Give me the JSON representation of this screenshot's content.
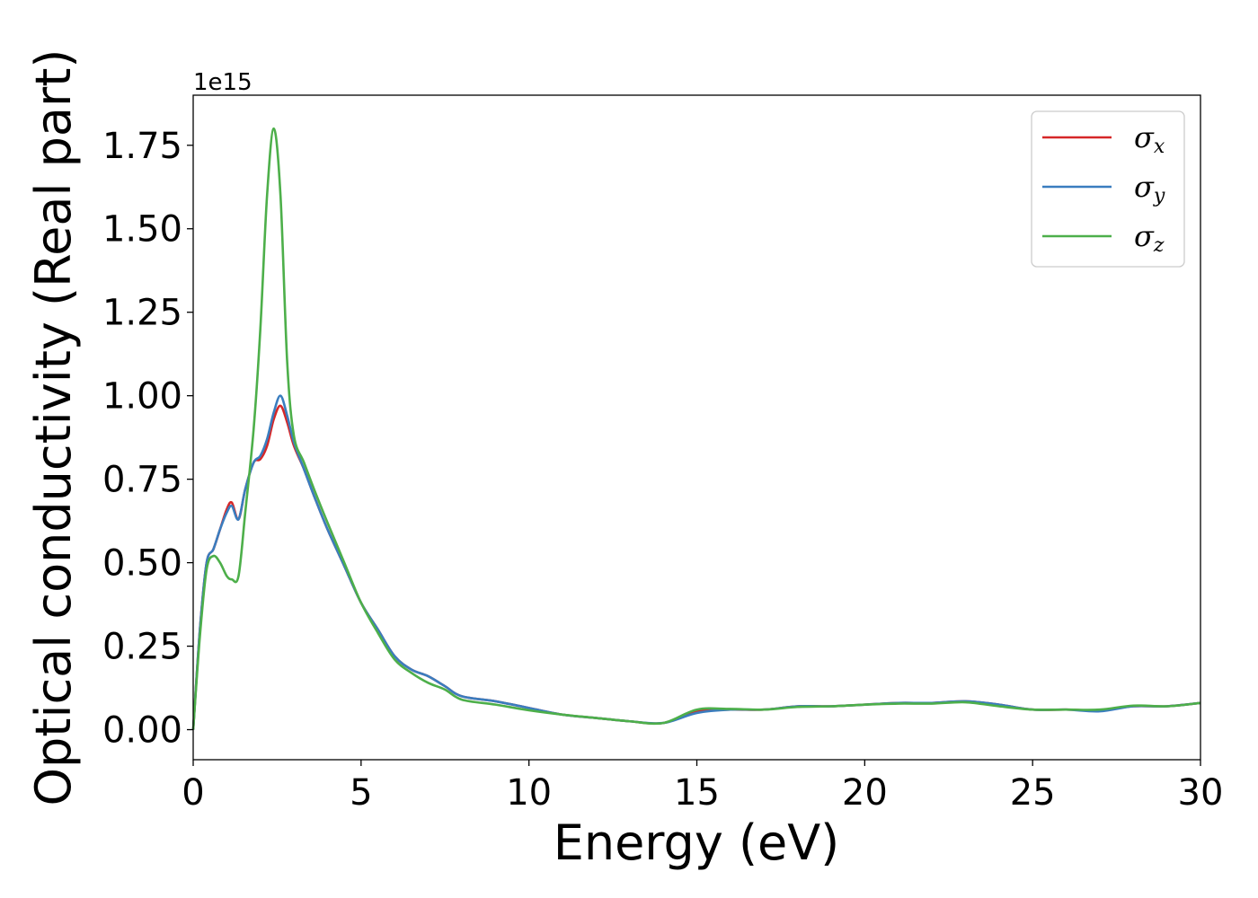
{
  "chart_data": {
    "type": "line",
    "xlabel": "Energy (eV)",
    "ylabel": "Optical conductivity (Real part)",
    "y_offset_text": "1e15",
    "xlim": [
      0,
      30
    ],
    "ylim": [
      -0.09,
      1.9
    ],
    "y_multiplier": 1000000000000000.0,
    "x_ticks": [
      0,
      5,
      10,
      15,
      20,
      25,
      30
    ],
    "y_ticks": [
      0.0,
      0.25,
      0.5,
      0.75,
      1.0,
      1.25,
      1.5,
      1.75
    ],
    "x_tick_labels": [
      "0",
      "5",
      "10",
      "15",
      "20",
      "25",
      "30"
    ],
    "y_tick_labels": [
      "0.00",
      "0.25",
      "0.50",
      "0.75",
      "1.00",
      "1.25",
      "1.50",
      "1.75"
    ],
    "grid": false,
    "legend_position": "top-right",
    "x": [
      0,
      0.2,
      0.4,
      0.6,
      0.8,
      1.0,
      1.15,
      1.35,
      1.55,
      1.8,
      2.0,
      2.2,
      2.4,
      2.6,
      2.8,
      3.0,
      3.3,
      3.6,
      4.0,
      4.5,
      5.0,
      5.5,
      6.0,
      6.5,
      7.0,
      7.5,
      8.0,
      9.0,
      10.0,
      11.0,
      12.0,
      13.0,
      14.0,
      15.0,
      16.0,
      17.0,
      18.0,
      19.0,
      20.0,
      21.0,
      22.0,
      23.0,
      24.0,
      25.0,
      26.0,
      27.0,
      28.0,
      29.0,
      30.0
    ],
    "series": [
      {
        "name": "σ",
        "subscript": "x",
        "color": "#d62728",
        "values": [
          0.0,
          0.3,
          0.5,
          0.54,
          0.6,
          0.66,
          0.68,
          0.63,
          0.72,
          0.8,
          0.81,
          0.85,
          0.93,
          0.97,
          0.92,
          0.85,
          0.78,
          0.7,
          0.6,
          0.49,
          0.38,
          0.3,
          0.22,
          0.18,
          0.16,
          0.13,
          0.1,
          0.085,
          0.065,
          0.045,
          0.035,
          0.025,
          0.02,
          0.055,
          0.06,
          0.06,
          0.07,
          0.07,
          0.075,
          0.08,
          0.08,
          0.085,
          0.075,
          0.06,
          0.06,
          0.058,
          0.07,
          0.07,
          0.08
        ]
      },
      {
        "name": "σ",
        "subscript": "y",
        "color": "#3a7dbf",
        "values": [
          0.0,
          0.3,
          0.5,
          0.54,
          0.6,
          0.65,
          0.67,
          0.63,
          0.72,
          0.8,
          0.82,
          0.87,
          0.95,
          1.0,
          0.94,
          0.86,
          0.78,
          0.7,
          0.6,
          0.49,
          0.38,
          0.3,
          0.22,
          0.18,
          0.16,
          0.13,
          0.1,
          0.085,
          0.065,
          0.045,
          0.035,
          0.025,
          0.02,
          0.05,
          0.06,
          0.06,
          0.07,
          0.07,
          0.075,
          0.08,
          0.08,
          0.085,
          0.075,
          0.06,
          0.06,
          0.055,
          0.07,
          0.07,
          0.08
        ]
      },
      {
        "name": "σ",
        "subscript": "z",
        "color": "#4daf4a",
        "values": [
          0.0,
          0.28,
          0.48,
          0.52,
          0.5,
          0.46,
          0.45,
          0.46,
          0.65,
          0.9,
          1.2,
          1.6,
          1.8,
          1.6,
          1.1,
          0.88,
          0.8,
          0.72,
          0.62,
          0.5,
          0.38,
          0.29,
          0.21,
          0.17,
          0.14,
          0.12,
          0.09,
          0.075,
          0.058,
          0.045,
          0.035,
          0.025,
          0.02,
          0.06,
          0.062,
          0.06,
          0.068,
          0.07,
          0.075,
          0.078,
          0.078,
          0.082,
          0.07,
          0.06,
          0.06,
          0.06,
          0.072,
          0.07,
          0.08
        ]
      }
    ]
  }
}
